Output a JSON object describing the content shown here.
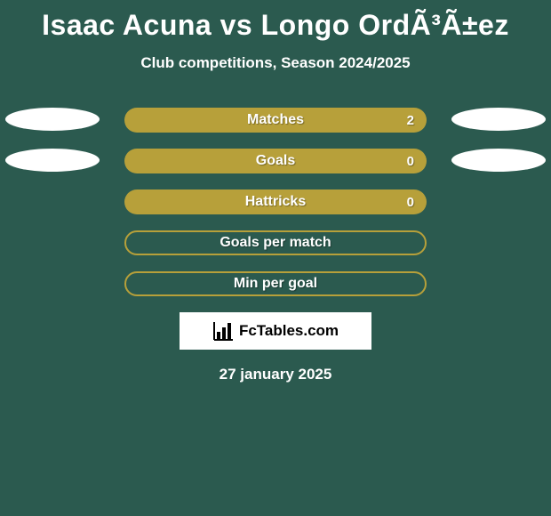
{
  "title": "Isaac Acuna vs Longo OrdÃ³Ã±ez",
  "subtitle": "Club competitions, Season 2024/2025",
  "colors": {
    "background": "#2b5a4f",
    "bar_fill": "#b7a03a",
    "bar_border": "#b7a03a",
    "ellipse": "#ffffff",
    "text": "#ffffff",
    "brand_bg": "#ffffff",
    "brand_text": "#000000"
  },
  "stats": [
    {
      "label": "Matches",
      "value": "2",
      "show_value": true,
      "show_left_ellipse": true,
      "show_right_ellipse": true,
      "style": "filled"
    },
    {
      "label": "Goals",
      "value": "0",
      "show_value": true,
      "show_left_ellipse": true,
      "show_right_ellipse": true,
      "style": "filled"
    },
    {
      "label": "Hattricks",
      "value": "0",
      "show_value": true,
      "show_left_ellipse": false,
      "show_right_ellipse": false,
      "style": "filled"
    },
    {
      "label": "Goals per match",
      "value": "",
      "show_value": false,
      "show_left_ellipse": false,
      "show_right_ellipse": false,
      "style": "outlined"
    },
    {
      "label": "Min per goal",
      "value": "",
      "show_value": false,
      "show_left_ellipse": false,
      "show_right_ellipse": false,
      "style": "outlined"
    }
  ],
  "brand": "FcTables.com",
  "date": "27 january 2025"
}
